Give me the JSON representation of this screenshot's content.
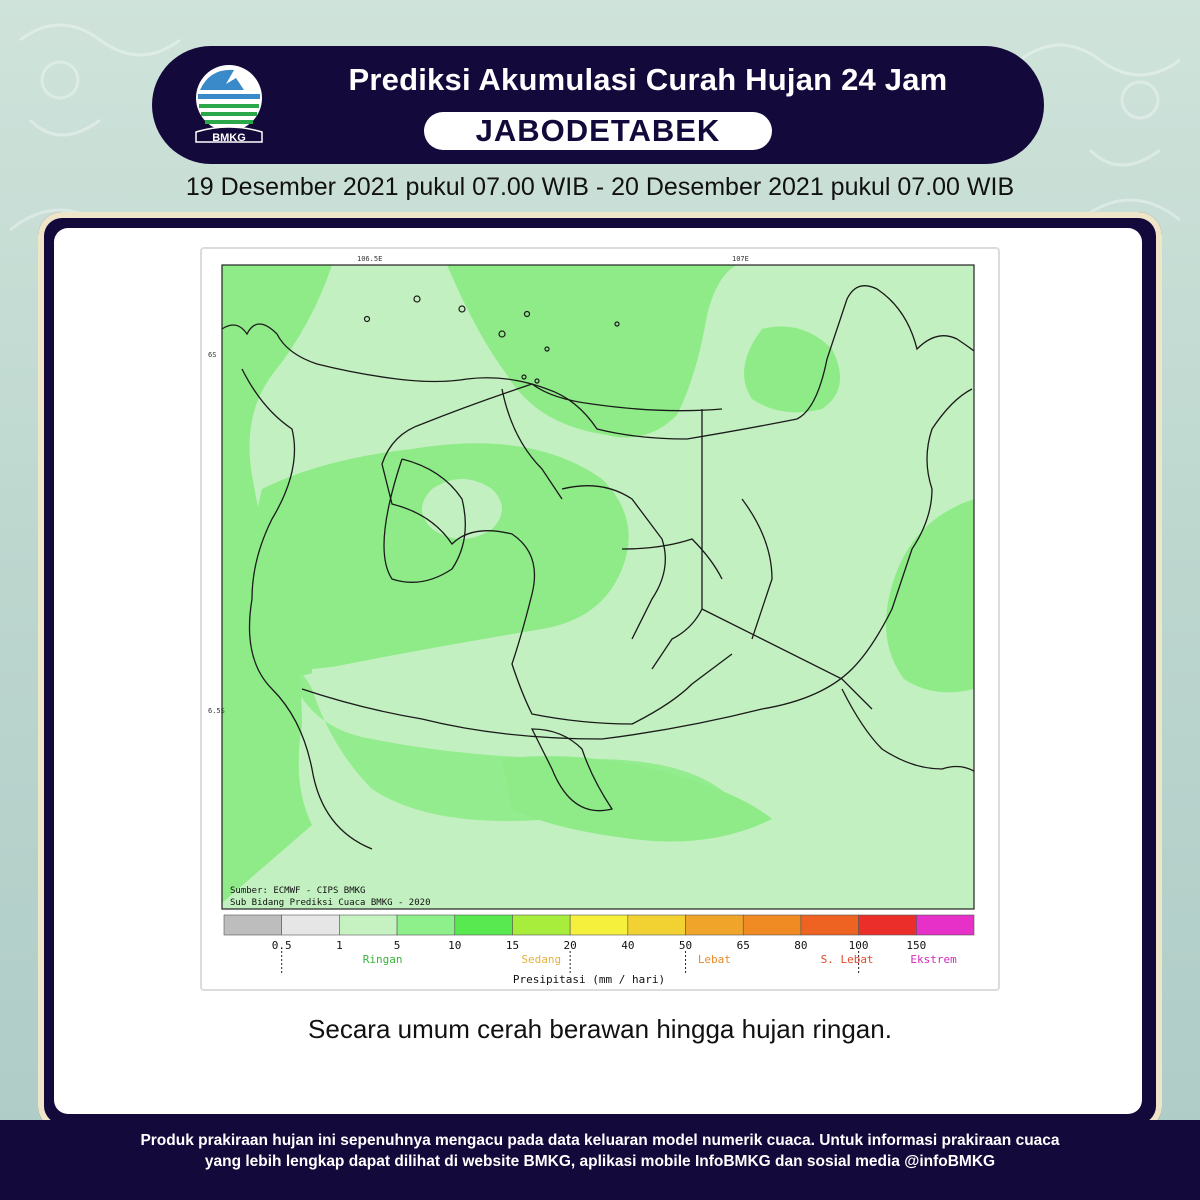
{
  "header": {
    "title": "Prediksi Akumulasi Curah Hujan 24 Jam",
    "region": "JABODETABEK",
    "logo_text": "BMKG"
  },
  "period": "19 Desember 2021 pukul 07.00 WIB - 20 Desember 2021 pukul 07.00 WIB",
  "map": {
    "lon_labels": [
      "106.5E",
      "107E"
    ],
    "lat_labels": [
      "6S",
      "6.5S"
    ],
    "source_lines": [
      "Sumber: ECMWF - CIPS BMKG",
      "Sub Bidang Prediksi Cuaca BMKG - 2020"
    ],
    "legend": {
      "title": "Presipitasi (mm / hari)",
      "ticks": [
        "0.5",
        "1",
        "5",
        "10",
        "15",
        "20",
        "40",
        "50",
        "65",
        "80",
        "100",
        "150"
      ],
      "colors": [
        "#bdbdbd",
        "#e6e6e6",
        "#c6f2c2",
        "#8ef08a",
        "#58e84f",
        "#a8ec3c",
        "#f4f03c",
        "#f2d233",
        "#f0a52a",
        "#f08a23",
        "#ee6322",
        "#ec2e2a",
        "#e630c8"
      ],
      "categories": [
        {
          "label": "Ringan",
          "color": "#39b33a"
        },
        {
          "label": "Sedang",
          "color": "#e3b23c"
        },
        {
          "label": "Lebat",
          "color": "#e98a2b"
        },
        {
          "label": "S. Lebat",
          "color": "#e04a2a"
        },
        {
          "label": "Ekstrem",
          "color": "#d12bbf"
        }
      ]
    }
  },
  "summary": "Secara umum cerah berawan hingga hujan ringan.",
  "footer": {
    "line1": "Produk prakiraan hujan ini sepenuhnya mengacu pada data keluaran model numerik cuaca. Untuk informasi prakiraan cuaca",
    "line2": "yang lebih lengkap dapat dilihat di website BMKG, aplikasi mobile InfoBMKG dan sosial media @infoBMKG"
  }
}
